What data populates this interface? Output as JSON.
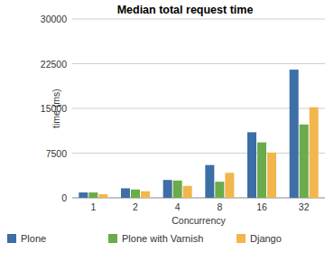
{
  "chart_data": {
    "type": "bar",
    "title": "Median total request time",
    "x_label": "Concurrency",
    "y_label": "time (ms)",
    "categories": [
      "1",
      "2",
      "4",
      "8",
      "16",
      "32"
    ],
    "series": [
      {
        "name": "Plone",
        "color": "#3d6ea6",
        "values": [
          900,
          1600,
          3000,
          5500,
          11000,
          21500
        ]
      },
      {
        "name": "Plone with Varnish",
        "color": "#6aab4c",
        "values": [
          900,
          1400,
          2900,
          2700,
          9300,
          12300
        ]
      },
      {
        "name": "Django",
        "color": "#f2b64c",
        "values": [
          600,
          1100,
          2000,
          4200,
          7600,
          15200
        ]
      }
    ],
    "ylim": [
      0,
      30000
    ],
    "yticks": [
      0,
      7500,
      15000,
      22500,
      30000
    ],
    "grid": true,
    "legend": "bottom"
  }
}
